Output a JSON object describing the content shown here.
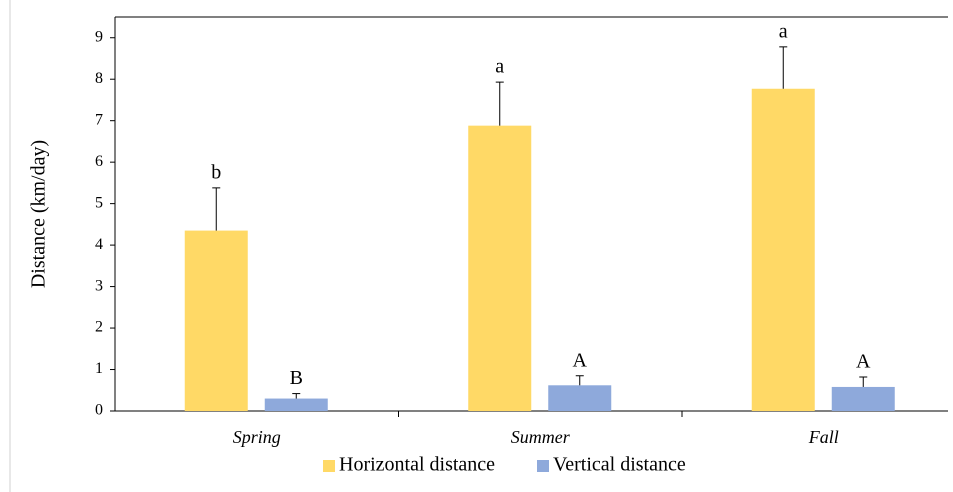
{
  "chart_data": {
    "type": "bar",
    "y_label": "Distance (km/day)",
    "categories": [
      "Spring",
      "Summer",
      "Fall"
    ],
    "series": [
      {
        "name": "Horizontal distance",
        "color": "#ffd966",
        "values": [
          4.35,
          6.88,
          7.77
        ],
        "errors": [
          1.03,
          1.05,
          1.01
        ],
        "annotations": [
          "b",
          "a",
          "a"
        ]
      },
      {
        "name": "Vertical distance",
        "color": "#8ea9db",
        "values": [
          0.3,
          0.62,
          0.58
        ],
        "errors": [
          0.12,
          0.23,
          0.24
        ],
        "annotations": [
          "B",
          "A",
          "A"
        ]
      }
    ],
    "ylim": [
      0,
      9.5
    ],
    "yticks": [
      0,
      1,
      2,
      3,
      4,
      5,
      6,
      7,
      8,
      9
    ],
    "grid": false,
    "legend": "bottom"
  }
}
